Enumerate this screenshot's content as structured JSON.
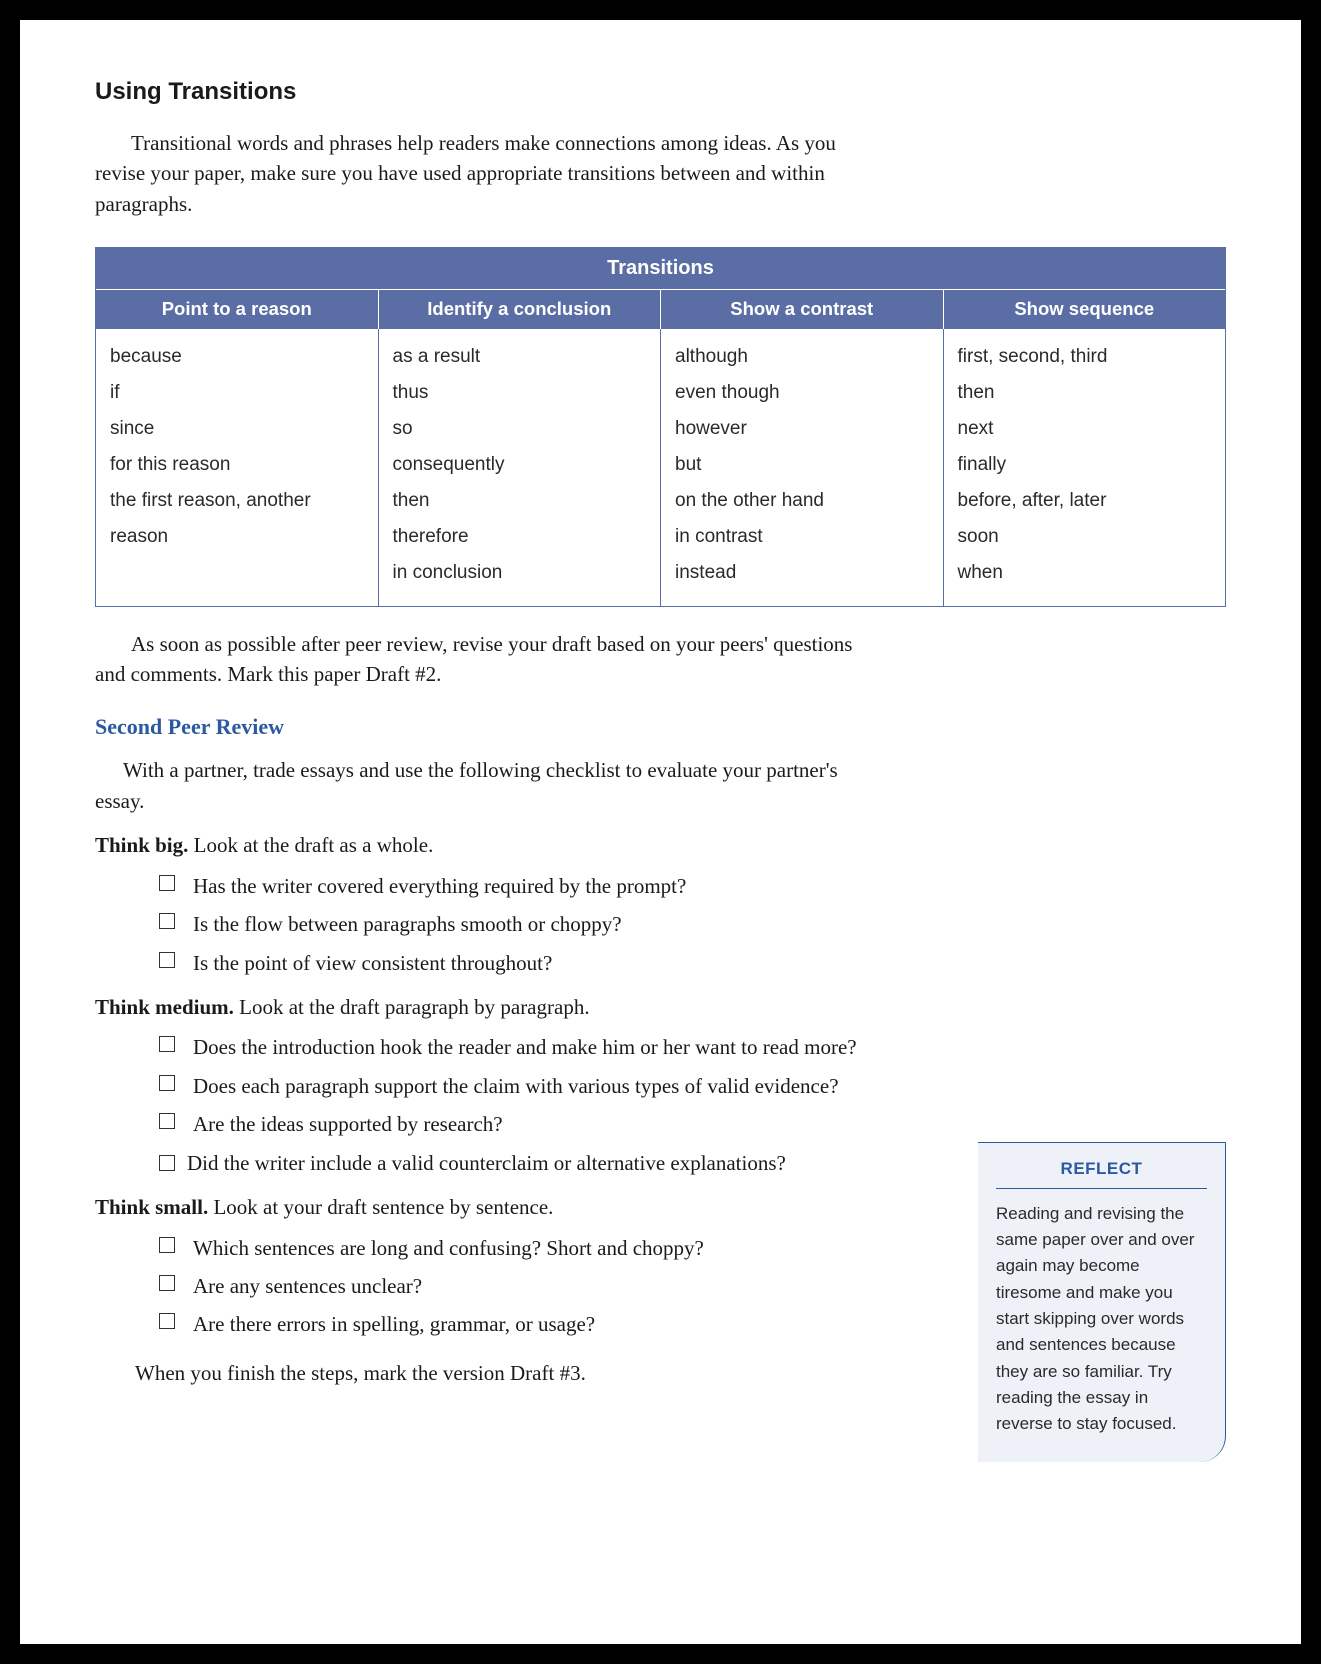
{
  "heading": "Using Transitions",
  "intro": "Transitional words and phrases help readers make connections among ideas. As you revise your paper, make sure you have used appropriate transitions between and within paragraphs.",
  "table": {
    "title": "Transitions",
    "header_bg": "#5a6ea5",
    "header_text_color": "#ffffff",
    "border_color": "#5a6ea5",
    "cell_font_family": "Verdana",
    "cell_font_size_pt": 14,
    "columns": [
      {
        "head": "Point to a reason",
        "items": [
          "because",
          "if",
          "since",
          "for this reason",
          "the first reason, another reason"
        ]
      },
      {
        "head": "Identify a conclusion",
        "items": [
          "as a result",
          "thus",
          "so",
          "consequently",
          "then",
          "therefore",
          "in conclusion"
        ]
      },
      {
        "head": "Show a contrast",
        "items": [
          "although",
          "even though",
          "however",
          "but",
          "on the other hand",
          "in contrast",
          "instead"
        ]
      },
      {
        "head": "Show sequence",
        "items": [
          "first, second, third",
          "then",
          "next",
          "finally",
          "before, after, later",
          "soon",
          "when"
        ]
      }
    ]
  },
  "after_table": "As soon as possible after peer review, revise your draft based on your peers' questions and comments. Mark this paper Draft #2.",
  "second_review": {
    "heading": "Second Peer Review",
    "heading_color": "#2c5aa0",
    "intro": "With a partner, trade essays and use the following checklist to evaluate your partner's essay.",
    "sections": [
      {
        "lead": "Think big.",
        "rest": " Look at the draft as a whole.",
        "items": [
          "Has the writer covered everything required by the prompt?",
          "Is the flow between paragraphs smooth or choppy?",
          "Is the point of view consistent throughout?"
        ]
      },
      {
        "lead": "Think medium.",
        "rest": " Look at the draft paragraph by paragraph.",
        "items": [
          "Does the introduction hook the reader and make him or her want to read more?",
          "Does each paragraph support the claim with various types of valid evidence?",
          "Are the ideas supported by research?"
        ],
        "hanging_item": "Did the writer include a valid counterclaim or alternative explanations?"
      },
      {
        "lead": "Think small.",
        "rest": " Look at your draft sentence by sentence.",
        "items": [
          "Which sentences are long and confusing? Short and choppy?",
          "Are any sentences unclear?",
          "Are there errors in spelling, grammar, or usage?"
        ]
      }
    ],
    "closing": "When you finish the steps, mark the version Draft #3."
  },
  "reflect": {
    "title": "REFLECT",
    "title_color": "#2c5aa0",
    "bg_color": "#eef1f7",
    "body": "Reading and revising the same paper over and over again may become tiresome and make you start skipping over words and sentences because they are so familiar. Try reading the essay in reverse to stay focused."
  }
}
